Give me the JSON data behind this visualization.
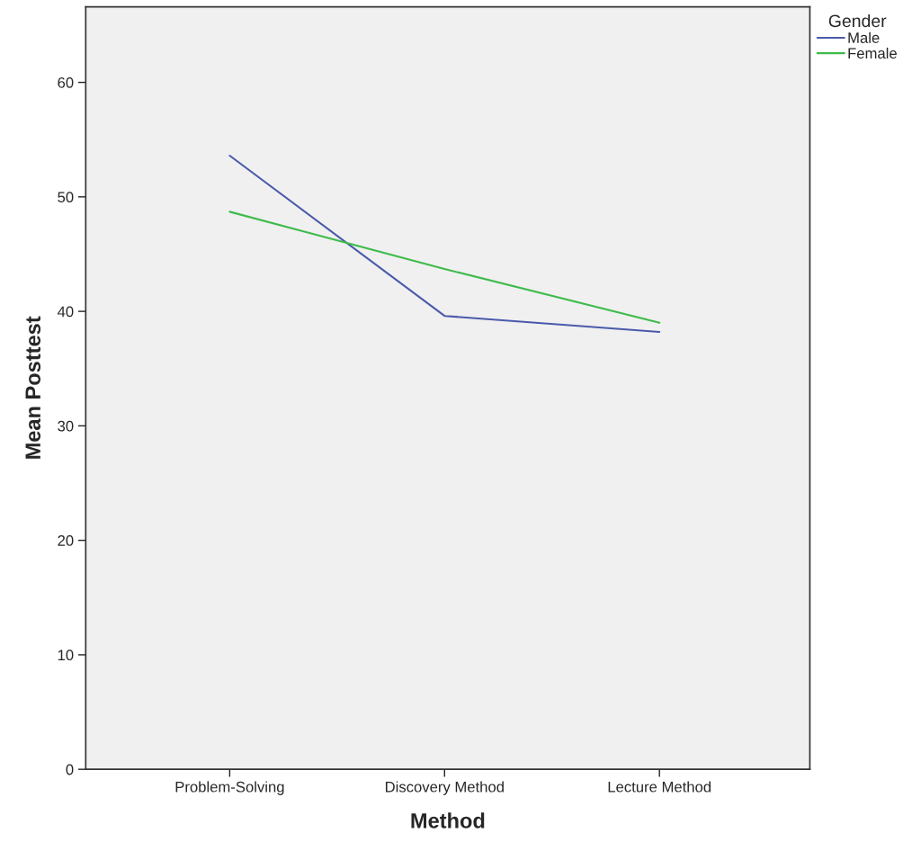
{
  "chart_data": {
    "type": "line",
    "xlabel": "Method",
    "ylabel": "Mean Posttest",
    "legend_title": "Gender",
    "legend": "top right",
    "grid": false,
    "marker": "none",
    "line_style": "solid",
    "categories": [
      "Problem-Solving",
      "Discovery Method",
      "Lecture Method"
    ],
    "ylim": [
      0,
      66.6
    ],
    "yticks": [
      0,
      10,
      20,
      30,
      40,
      50,
      60
    ],
    "series": [
      {
        "name": "Male",
        "color": "#4a5aab",
        "values": [
          53.6,
          39.6,
          38.2
        ]
      },
      {
        "name": "Female",
        "color": "#3dbb4a",
        "values": [
          48.7,
          43.7,
          39.0
        ]
      }
    ]
  }
}
